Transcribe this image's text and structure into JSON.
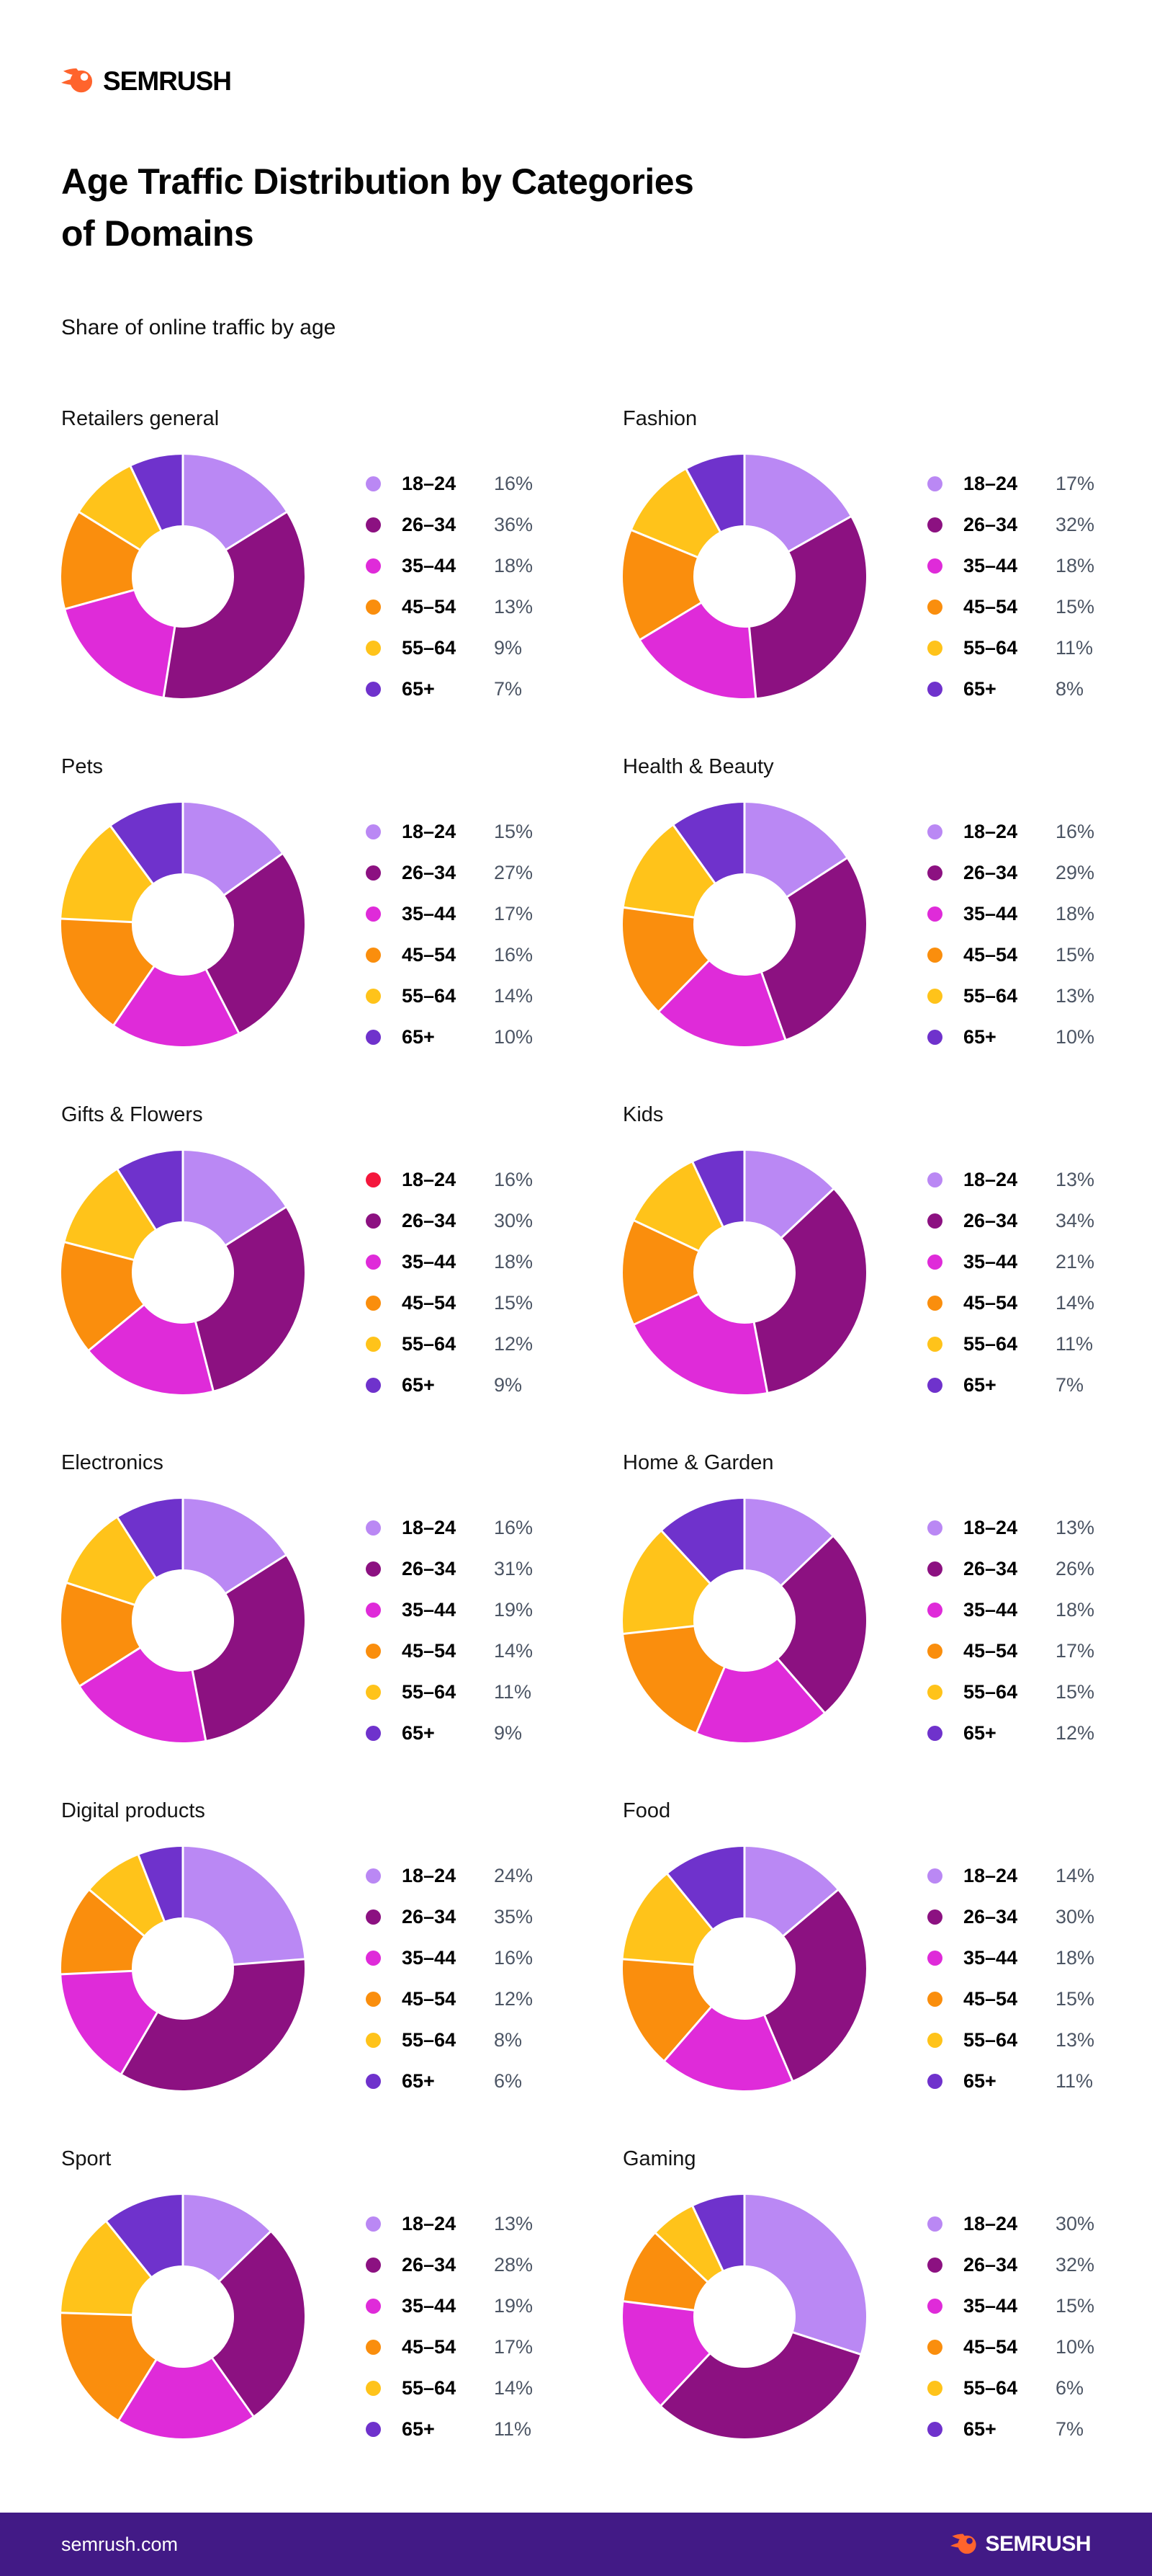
{
  "header": {
    "logo_text": "SEMRUSH",
    "brand_orange": "#FF642D",
    "title": "Age Traffic Distribution by Categories\nof Domains",
    "subtitle": "Share of online traffic by age"
  },
  "chart_data": {
    "type": "pie",
    "donut": true,
    "legend_position": "right",
    "age_groups": [
      "18–24",
      "26–34",
      "35–44",
      "45–54",
      "55–64",
      "65+"
    ],
    "colors": [
      "#BA88F4",
      "#8C1181",
      "#DF2BD9",
      "#FA8E0D",
      "#FFC31A",
      "#6F32CC"
    ],
    "charts": [
      {
        "title": "Retailers general",
        "values": [
          16,
          36,
          18,
          13,
          9,
          7
        ]
      },
      {
        "title": "Fashion",
        "values": [
          17,
          32,
          18,
          15,
          11,
          8
        ]
      },
      {
        "title": "Pets",
        "values": [
          15,
          27,
          17,
          16,
          14,
          10
        ]
      },
      {
        "title": "Health & Beauty",
        "values": [
          16,
          29,
          18,
          15,
          13,
          10
        ]
      },
      {
        "title": "Gifts & Flowers",
        "values": [
          16,
          30,
          18,
          15,
          12,
          9
        ],
        "legend_dot_override": {
          "0": "#F4173C"
        }
      },
      {
        "title": "Kids",
        "values": [
          13,
          34,
          21,
          14,
          11,
          7
        ]
      },
      {
        "title": "Electronics",
        "values": [
          16,
          31,
          19,
          14,
          11,
          9
        ]
      },
      {
        "title": "Home & Garden",
        "values": [
          13,
          26,
          18,
          17,
          15,
          12
        ]
      },
      {
        "title": "Digital products",
        "values": [
          24,
          35,
          16,
          12,
          8,
          6
        ]
      },
      {
        "title": "Food",
        "values": [
          14,
          30,
          18,
          15,
          13,
          11
        ]
      },
      {
        "title": "Sport",
        "values": [
          13,
          28,
          19,
          17,
          14,
          11
        ]
      },
      {
        "title": "Gaming",
        "values": [
          30,
          32,
          15,
          10,
          6,
          7
        ]
      }
    ]
  },
  "footer": {
    "url": "semrush.com",
    "logo_text": "SEMRUSH",
    "bg": "#421A86"
  }
}
